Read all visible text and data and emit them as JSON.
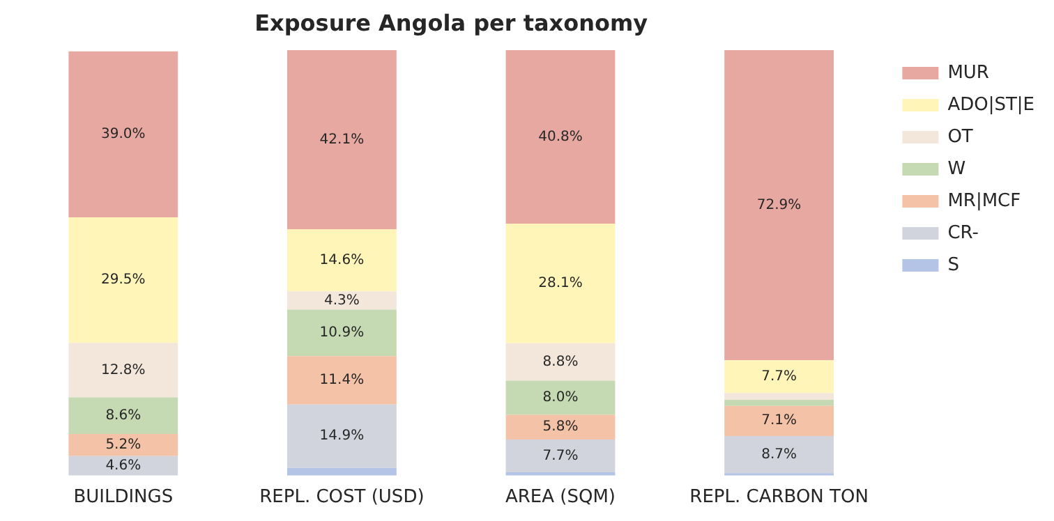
{
  "chart_data": {
    "type": "bar",
    "title": "Exposure Angola per taxonomy",
    "stacked": true,
    "legend": "top right",
    "categories": [
      "BUILDINGS",
      "REPL. COST (USD)",
      "AREA (SQM)",
      "REPL. CARBON TON"
    ],
    "series": [
      {
        "name": "S",
        "color": "#b4c4e6",
        "values": [
          null,
          1.8,
          0.8,
          0.6
        ],
        "value_labels": [
          null,
          null,
          null,
          null
        ]
      },
      {
        "name": "CR-",
        "color": "#d1d4dc",
        "values": [
          4.6,
          14.9,
          7.7,
          8.7
        ],
        "value_labels": [
          "4.6%",
          "14.9%",
          "7.7%",
          "8.7%"
        ]
      },
      {
        "name": "MR|MCF",
        "color": "#f4c2a6",
        "values": [
          5.2,
          11.4,
          5.8,
          7.1
        ],
        "value_labels": [
          "5.2%",
          "11.4%",
          "5.8%",
          "7.1%"
        ]
      },
      {
        "name": "W",
        "color": "#c5d9b2",
        "values": [
          8.6,
          10.9,
          8.0,
          1.4
        ],
        "value_labels": [
          "8.6%",
          "10.9%",
          "8.0%",
          null
        ]
      },
      {
        "name": "OT",
        "color": "#f3e7dc",
        "values": [
          12.8,
          4.3,
          8.8,
          1.6
        ],
        "value_labels": [
          "12.8%",
          "4.3%",
          "8.8%",
          null
        ]
      },
      {
        "name": "ADO|ST|E",
        "color": "#fff5b9",
        "values": [
          29.5,
          14.6,
          28.1,
          7.7
        ],
        "value_labels": [
          "29.5%",
          "14.6%",
          "28.1%",
          "7.7%"
        ]
      },
      {
        "name": "MUR",
        "color": "#e8a8a2",
        "values": [
          39.0,
          42.1,
          40.8,
          72.9
        ],
        "value_labels": [
          "39.0%",
          "42.1%",
          "40.8%",
          "72.9%"
        ]
      }
    ]
  }
}
